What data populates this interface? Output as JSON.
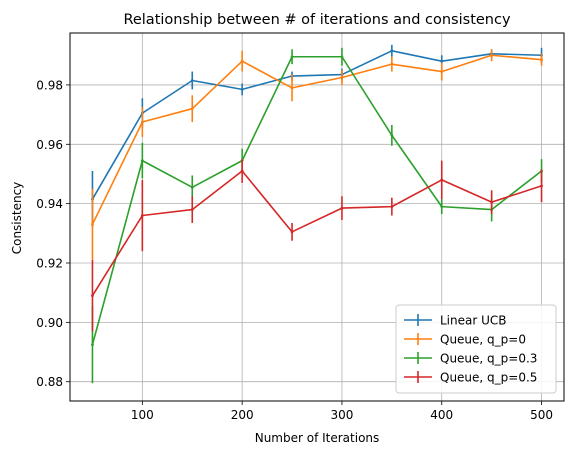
{
  "chart_data": {
    "type": "line",
    "title": "Relationship between # of iterations and consistency",
    "xlabel": "Number of Iterations",
    "ylabel": "Consistency",
    "xlim": [
      27.5,
      522.5
    ],
    "ylim": [
      0.8735,
      0.9975
    ],
    "xticks": [
      100,
      200,
      300,
      400,
      500
    ],
    "yticks": [
      0.88,
      0.9,
      0.92,
      0.94,
      0.96,
      0.98
    ],
    "ytick_labels": [
      "0.88",
      "0.90",
      "0.92",
      "0.94",
      "0.96",
      "0.98"
    ],
    "grid": true,
    "legend_position": "lower-right",
    "x": [
      50,
      100,
      150,
      200,
      250,
      300,
      350,
      400,
      450,
      500
    ],
    "series": [
      {
        "name": "Linear UCB",
        "color": "#1f77b4",
        "values": [
          0.9415,
          0.9705,
          0.9815,
          0.9785,
          0.983,
          0.9835,
          0.9915,
          0.988,
          0.9905,
          0.99
        ],
        "errors": [
          0.0095,
          0.005,
          0.003,
          0.002,
          0.0015,
          0.002,
          0.002,
          0.002,
          0.0015,
          0.0025
        ]
      },
      {
        "name": "Queue, q_p=0",
        "color": "#ff7f0e",
        "values": [
          0.933,
          0.9675,
          0.972,
          0.988,
          0.979,
          0.9825,
          0.987,
          0.9845,
          0.99,
          0.9885
        ],
        "errors": [
          0.012,
          0.005,
          0.0045,
          0.0035,
          0.0045,
          0.0025,
          0.0025,
          0.003,
          0.002,
          0.002
        ]
      },
      {
        "name": "Queue, q_p=0.3",
        "color": "#2ca02c",
        "values": [
          0.8925,
          0.9545,
          0.9455,
          0.9545,
          0.9895,
          0.9895,
          0.963,
          0.939,
          0.938,
          0.951
        ],
        "errors": [
          0.013,
          0.006,
          0.004,
          0.004,
          0.0025,
          0.003,
          0.0035,
          0.0025,
          0.004,
          0.004
        ]
      },
      {
        "name": "Queue, q_p=0.5",
        "color": "#d62728",
        "values": [
          0.909,
          0.936,
          0.938,
          0.951,
          0.9305,
          0.9385,
          0.939,
          0.948,
          0.9405,
          0.946
        ],
        "errors": [
          0.012,
          0.012,
          0.0045,
          0.004,
          0.003,
          0.004,
          0.003,
          0.0065,
          0.004,
          0.0055
        ]
      }
    ]
  }
}
